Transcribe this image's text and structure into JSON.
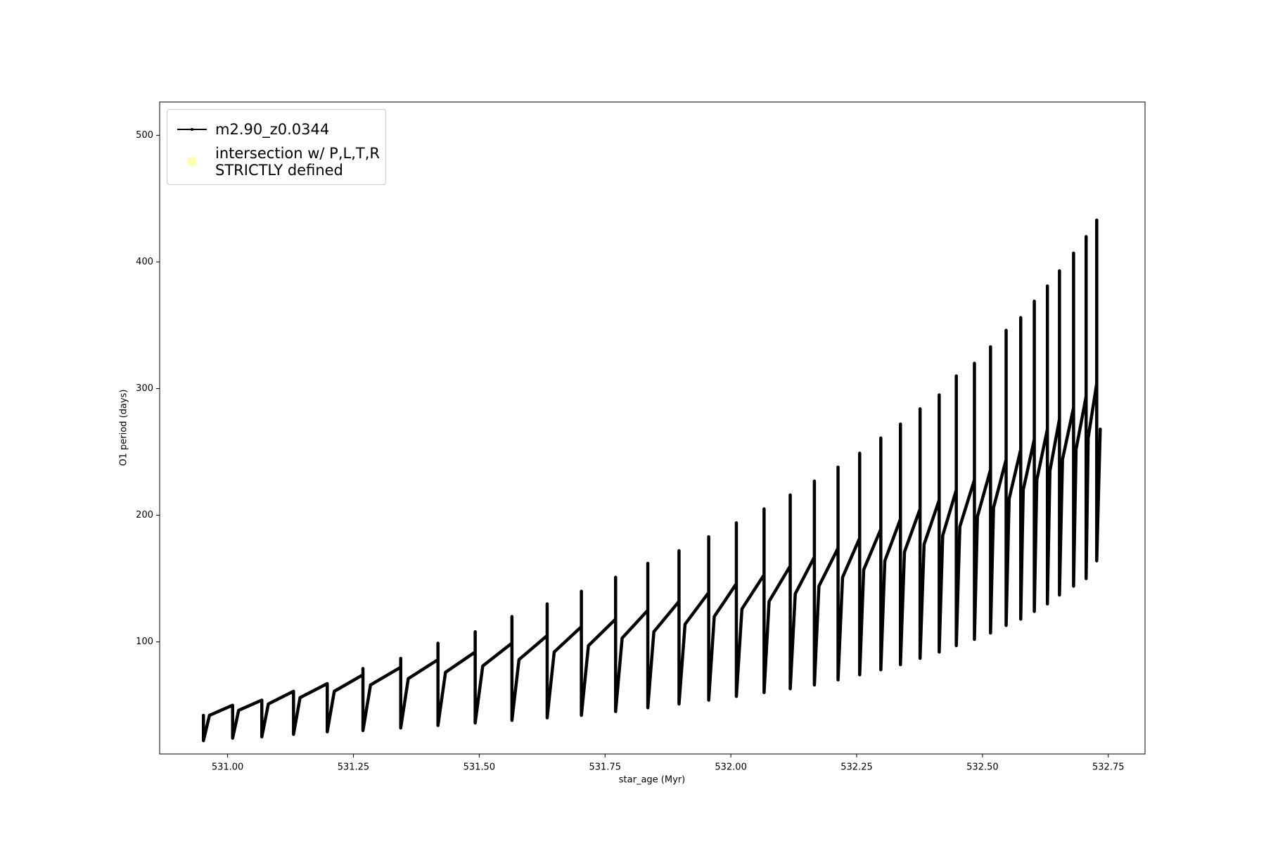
{
  "chart_data": {
    "type": "line",
    "xlabel": "star_age (Myr)",
    "ylabel": "O1 period (days)",
    "xlim": [
      530.865,
      532.823
    ],
    "ylim": [
      11.5,
      526.3
    ],
    "xticks": [
      {
        "value": 531.0,
        "label": "531.00"
      },
      {
        "value": 531.25,
        "label": "531.25"
      },
      {
        "value": 531.5,
        "label": "531.50"
      },
      {
        "value": 531.75,
        "label": "531.75"
      },
      {
        "value": 532.0,
        "label": "532.00"
      },
      {
        "value": 532.25,
        "label": "532.25"
      },
      {
        "value": 532.5,
        "label": "532.50"
      },
      {
        "value": 532.75,
        "label": "532.75"
      }
    ],
    "yticks": [
      100,
      200,
      300,
      400,
      500
    ],
    "legend": "upper left",
    "x": [
      530.952,
      530.952,
      530.964,
      531.01,
      531.01,
      531.022,
      531.068,
      531.068,
      531.081,
      531.131,
      531.131,
      531.144,
      531.198,
      531.198,
      531.212,
      531.269,
      531.269,
      531.269,
      531.284,
      531.344,
      531.344,
      531.344,
      531.359,
      531.418,
      531.418,
      531.418,
      531.433,
      531.492,
      531.492,
      531.492,
      531.507,
      531.565,
      531.565,
      531.565,
      531.579,
      531.635,
      531.635,
      531.635,
      531.649,
      531.703,
      531.703,
      531.703,
      531.717,
      531.771,
      531.771,
      531.771,
      531.784,
      531.835,
      531.835,
      531.835,
      531.847,
      531.897,
      531.897,
      531.897,
      531.909,
      531.956,
      531.956,
      531.956,
      531.967,
      532.011,
      532.011,
      532.011,
      532.022,
      532.066,
      532.066,
      532.066,
      532.076,
      532.118,
      532.118,
      532.118,
      532.128,
      532.166,
      532.166,
      532.166,
      532.175,
      532.213,
      532.213,
      532.213,
      532.222,
      532.256,
      532.256,
      532.256,
      532.264,
      532.298,
      532.298,
      532.298,
      532.306,
      532.337,
      532.337,
      532.337,
      532.345,
      532.376,
      532.376,
      532.376,
      532.384,
      532.414,
      532.414,
      532.414,
      532.421,
      532.448,
      532.448,
      532.448,
      532.455,
      532.484,
      532.484,
      532.484,
      532.49,
      532.516,
      532.516,
      532.516,
      532.522,
      532.547,
      532.547,
      532.547,
      532.553,
      532.576,
      532.576,
      532.576,
      532.581,
      532.603,
      532.603,
      532.603,
      532.608,
      532.629,
      532.629,
      532.629,
      532.634,
      532.653,
      532.653,
      532.653,
      532.659,
      532.681,
      532.681,
      532.681,
      532.686,
      532.706,
      532.706,
      532.706,
      532.71,
      532.727,
      532.727,
      532.727,
      532.734
    ],
    "series": [
      {
        "name": "m2.90_z0.0344",
        "color": "#000000",
        "values": [
          42,
          22,
          42,
          50,
          24,
          46,
          54,
          25,
          51,
          61,
          27,
          56,
          67,
          29,
          61,
          74,
          79,
          30,
          66,
          80,
          87,
          32,
          71,
          86,
          99,
          34,
          76,
          92,
          108,
          36,
          81,
          99,
          120,
          38,
          86,
          105,
          130,
          40,
          92,
          112,
          140,
          42,
          97,
          118,
          151,
          45,
          103,
          125,
          162,
          48,
          108,
          132,
          172,
          51,
          114,
          139,
          183,
          54,
          120,
          146,
          194,
          57,
          126,
          153,
          205,
          60,
          132,
          160,
          216,
          63,
          138,
          167,
          227,
          66,
          144,
          174,
          238,
          70,
          151,
          182,
          249,
          74,
          157,
          189,
          261,
          78,
          164,
          197,
          272,
          82,
          171,
          205,
          284,
          87,
          177,
          212,
          295,
          92,
          184,
          220,
          310,
          97,
          191,
          228,
          320,
          102,
          199,
          236,
          333,
          107,
          206,
          244,
          346,
          113,
          213,
          252,
          356,
          118,
          220,
          260,
          369,
          124,
          228,
          268,
          381,
          130,
          235,
          276,
          393,
          137,
          244,
          285,
          407,
          144,
          252,
          294,
          420,
          150,
          261,
          304,
          433,
          164,
          268
        ]
      },
      {
        "name": "intersection w/ P,L,T,R\nSTRICTLY defined",
        "color": "#ffffb3"
      }
    ]
  }
}
